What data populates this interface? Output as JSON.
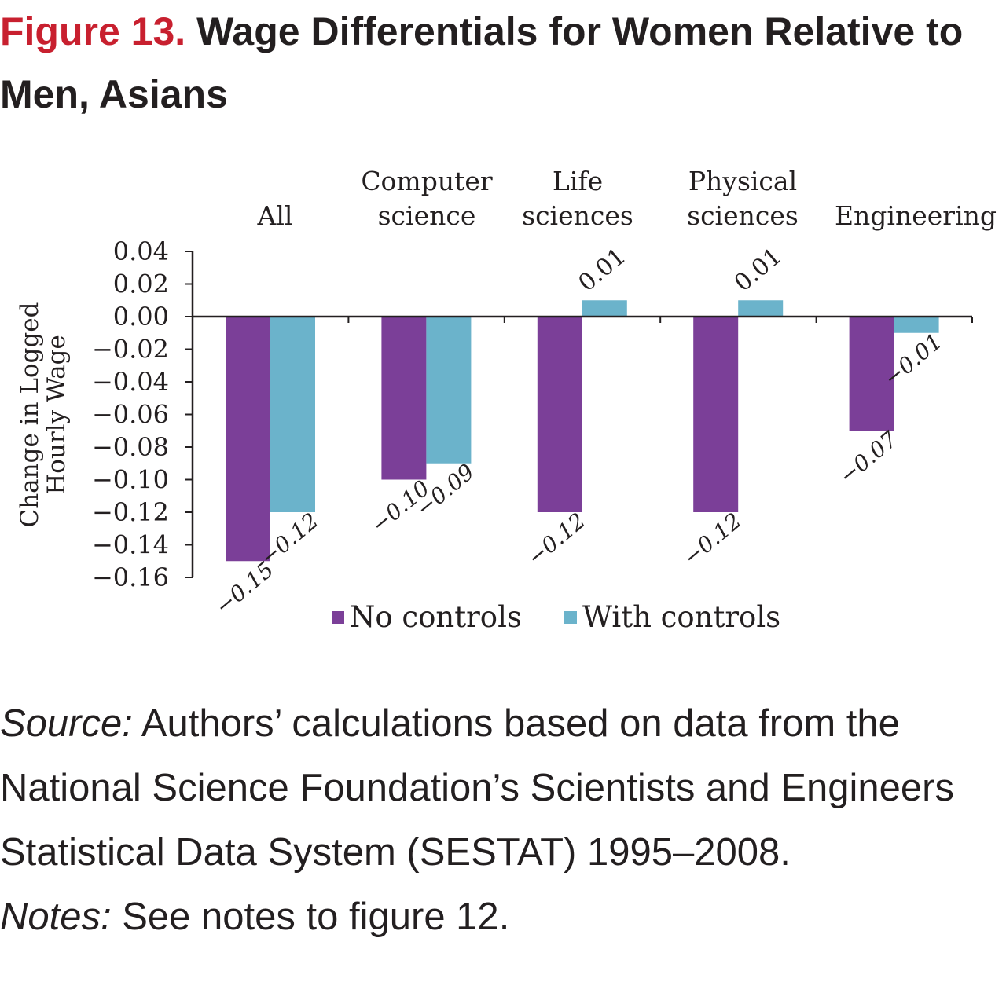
{
  "figure": {
    "label": "Figure 13.",
    "title": "Wage Differentials for Women Relative to Men, Asians"
  },
  "chart_data": {
    "type": "bar",
    "categories": [
      [
        "All"
      ],
      [
        "Computer",
        "science"
      ],
      [
        "Life",
        "sciences"
      ],
      [
        "Physical",
        "sciences"
      ],
      [
        "Engineering"
      ]
    ],
    "series": [
      {
        "name": "No controls",
        "color": "#7b3f98",
        "values": [
          -0.15,
          -0.1,
          -0.12,
          -0.12,
          -0.07
        ]
      },
      {
        "name": "With controls",
        "color": "#6bb3cb",
        "values": [
          -0.12,
          -0.09,
          0.01,
          0.01,
          -0.01
        ]
      }
    ],
    "ylabel": [
      "Change in Logged",
      "Hourly Wage"
    ],
    "ylim": [
      -0.16,
      0.04
    ],
    "yticks": [
      0.04,
      0.02,
      0.0,
      -0.02,
      -0.04,
      -0.06,
      -0.08,
      -0.1,
      -0.12,
      -0.14,
      -0.16
    ],
    "ytick_labels": [
      "0.04",
      "0.02",
      "0.00",
      "−0.02",
      "−0.04",
      "−0.06",
      "−0.08",
      "−0.10",
      "−0.12",
      "−0.14",
      "−0.16"
    ],
    "data_labels": [
      [
        "−0.15",
        "−0.10",
        "−0.12",
        "−0.12",
        "−0.07"
      ],
      [
        "−0.12",
        "−0.09",
        "0.01",
        "0.01",
        "−0.01"
      ]
    ],
    "legend_position": "bottom",
    "grid": false
  },
  "source": {
    "label": "Source:",
    "text": " Authors’ calculations based on data from the National Science Foundation’s Scientists and Engineers Statistical Data System (SESTAT) 1995–2008."
  },
  "notes": {
    "label": "Notes:",
    "text": " See notes to figure 12."
  }
}
